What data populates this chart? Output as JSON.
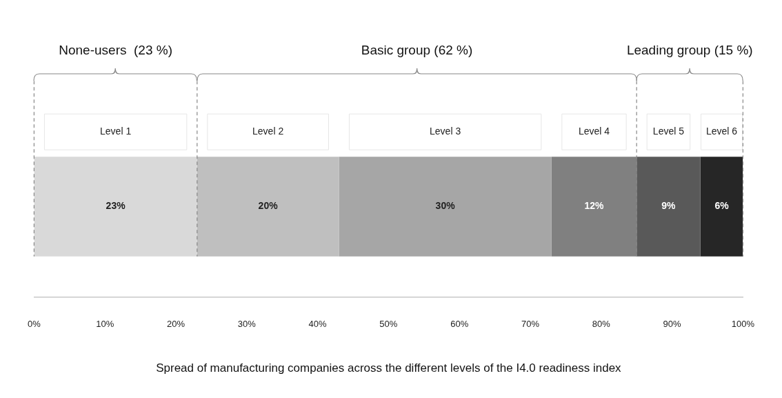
{
  "chart_data": {
    "type": "bar",
    "orientation": "horizontal",
    "stacked": true,
    "categories": [
      null
    ],
    "series": [
      {
        "name": "Level 1",
        "color": "#d9d9d9",
        "values": [
          23
        ],
        "value_labels": [
          "23%"
        ]
      },
      {
        "name": "Level 2",
        "color": "#bfbfbf",
        "values": [
          20
        ],
        "value_labels": [
          "20%"
        ]
      },
      {
        "name": "Level 3",
        "color": "#a6a6a6",
        "values": [
          30
        ],
        "value_labels": [
          "30%"
        ]
      },
      {
        "name": "Level 4",
        "color": "#808080",
        "values": [
          12
        ],
        "value_labels": [
          "12%"
        ]
      },
      {
        "name": "Level 5",
        "color": "#595959",
        "values": [
          9
        ],
        "value_labels": [
          "9%"
        ]
      },
      {
        "name": "Level 6",
        "color": "#262626",
        "values": [
          6
        ],
        "value_labels": [
          "6%"
        ]
      }
    ],
    "xlim": [
      0,
      100
    ],
    "xticks": [
      {
        "value": 0,
        "label": "0%"
      },
      {
        "value": 10,
        "label": "10%"
      },
      {
        "value": 20,
        "label": "20%"
      },
      {
        "value": 30,
        "label": "30%"
      },
      {
        "value": 40,
        "label": "40%"
      },
      {
        "value": 50,
        "label": "50%"
      },
      {
        "value": 60,
        "label": "60%"
      },
      {
        "value": 70,
        "label": "70%"
      },
      {
        "value": 80,
        "label": "80%"
      },
      {
        "value": 90,
        "label": "90%"
      },
      {
        "value": 100,
        "label": "100%"
      }
    ],
    "xlabel": "Spread of manufacturing companies across the different levels of the I4.0 readiness index",
    "ref_lines": [
      {
        "axis": "x",
        "value": 0,
        "color": "#888888",
        "line_style": "dashed"
      },
      {
        "axis": "x",
        "value": 23,
        "color": "#888888",
        "line_style": "dashed"
      },
      {
        "axis": "x",
        "value": 85,
        "color": "#888888",
        "line_style": "dashed"
      },
      {
        "axis": "x",
        "value": 100,
        "color": "#888888",
        "line_style": "dashed"
      }
    ],
    "annotations": [
      "None-users  (23 %)",
      "Basic group (62 %)",
      "Leading group (15 %)"
    ],
    "grid": false,
    "legend": false,
    "tick_labels": "x"
  }
}
